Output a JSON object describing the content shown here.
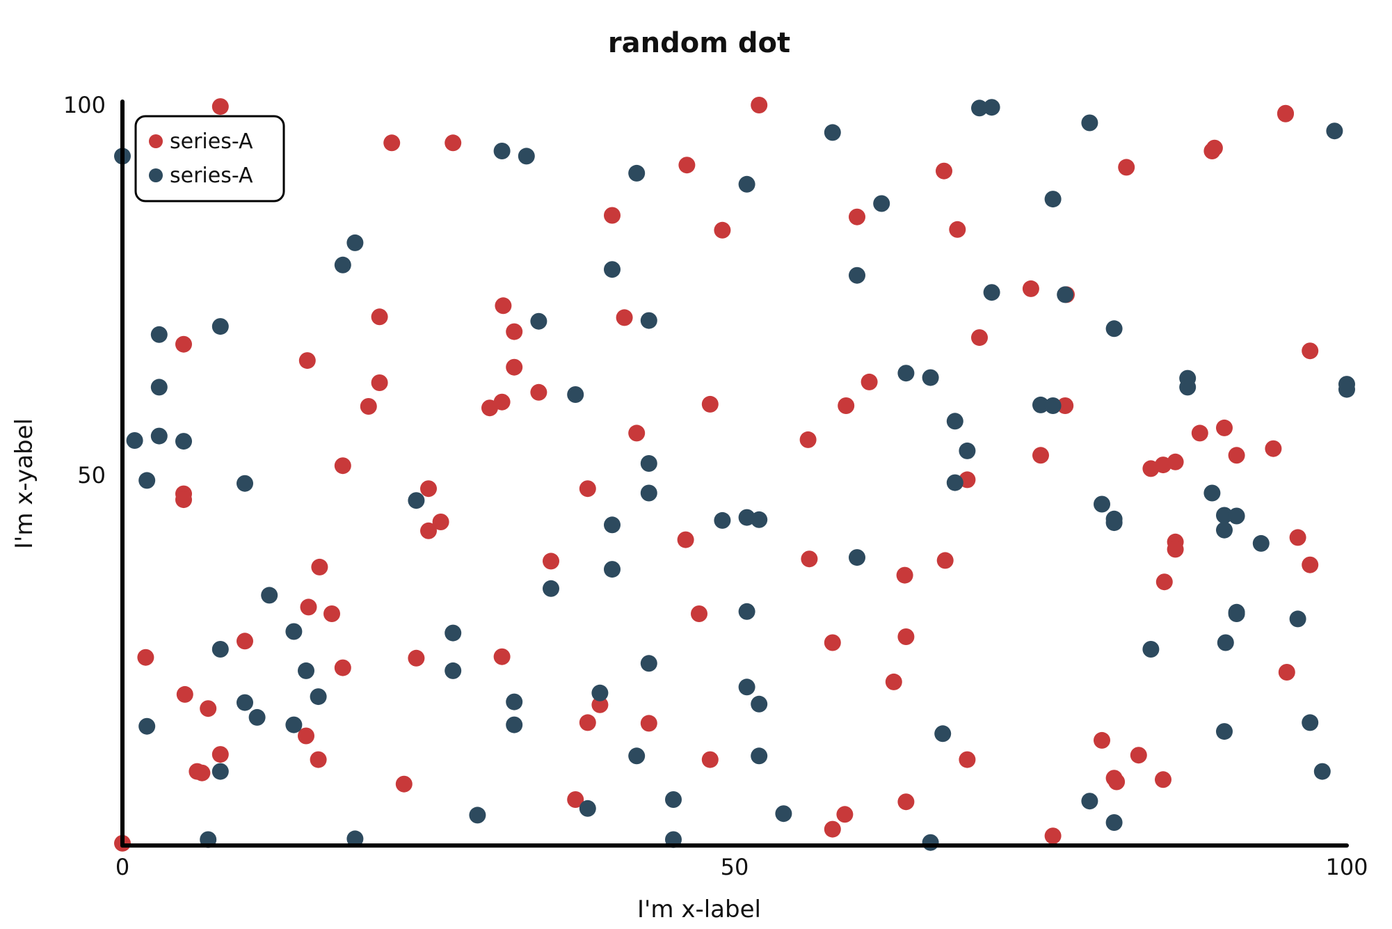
{
  "chart_data": {
    "type": "scatter",
    "title": "random dot",
    "xlabel": "I'm x-label",
    "ylabel": "I'm x-yabel",
    "xlim": [
      0,
      100
    ],
    "ylim": [
      0,
      100
    ],
    "xticks": [
      0,
      50,
      100
    ],
    "yticks": [
      50,
      100
    ],
    "legend_position": "top-left",
    "grid": false,
    "series": [
      {
        "name": "series-A",
        "color": "#c8393a",
        "points": [
          [
            0,
            0.3
          ],
          [
            1.9,
            25.4
          ],
          [
            5,
            47.5
          ],
          [
            5,
            46.7
          ],
          [
            5,
            67.7
          ],
          [
            5.1,
            20.4
          ],
          [
            6.1,
            10
          ],
          [
            6.5,
            9.8
          ],
          [
            7,
            18.5
          ],
          [
            8,
            12.3
          ],
          [
            8,
            99.8
          ],
          [
            10,
            27.6
          ],
          [
            15,
            14.8
          ],
          [
            15.1,
            65.5
          ],
          [
            15.2,
            32.2
          ],
          [
            16,
            11.6
          ],
          [
            16.1,
            37.6
          ],
          [
            17.1,
            31.3
          ],
          [
            18,
            24
          ],
          [
            18,
            51.3
          ],
          [
            20.1,
            59.3
          ],
          [
            21,
            71.4
          ],
          [
            21,
            62.5
          ],
          [
            22,
            94.9
          ],
          [
            23,
            8.3
          ],
          [
            24,
            25.3
          ],
          [
            25,
            48.2
          ],
          [
            25,
            42.5
          ],
          [
            26,
            43.7
          ],
          [
            27,
            94.9
          ],
          [
            30,
            59.1
          ],
          [
            31,
            25.5
          ],
          [
            31,
            59.9
          ],
          [
            31.1,
            72.9
          ],
          [
            32,
            69.4
          ],
          [
            32,
            64.6
          ],
          [
            34,
            61.2
          ],
          [
            35,
            38.4
          ],
          [
            37,
            6.2
          ],
          [
            38,
            48.2
          ],
          [
            38,
            16.6
          ],
          [
            39,
            19
          ],
          [
            40,
            85.1
          ],
          [
            41,
            71.3
          ],
          [
            42,
            55.7
          ],
          [
            43,
            16.5
          ],
          [
            46,
            41.3
          ],
          [
            46.1,
            91.9
          ],
          [
            47.1,
            31.3
          ],
          [
            48,
            11.6
          ],
          [
            48,
            59.6
          ],
          [
            49,
            83.1
          ],
          [
            52,
            100
          ],
          [
            56,
            54.8
          ],
          [
            56.1,
            38.7
          ],
          [
            58,
            27.4
          ],
          [
            58,
            2.2
          ],
          [
            59,
            4.2
          ],
          [
            59.1,
            59.4
          ],
          [
            60,
            84.9
          ],
          [
            61,
            62.6
          ],
          [
            63,
            22.1
          ],
          [
            63.9,
            36.5
          ],
          [
            64,
            28.2
          ],
          [
            64,
            5.9
          ],
          [
            67.2,
            38.5
          ],
          [
            67.1,
            91.1
          ],
          [
            68.2,
            83.2
          ],
          [
            69,
            49.4
          ],
          [
            69,
            11.6
          ],
          [
            70,
            68.6
          ],
          [
            74.2,
            75.2
          ],
          [
            75,
            52.7
          ],
          [
            76,
            1.3
          ],
          [
            77,
            59.4
          ],
          [
            77.1,
            74.4
          ],
          [
            80,
            14.2
          ],
          [
            81,
            9.1
          ],
          [
            81.2,
            8.6
          ],
          [
            82,
            91.6
          ],
          [
            83,
            12.2
          ],
          [
            84,
            50.9
          ],
          [
            85,
            8.9
          ],
          [
            85,
            51.4
          ],
          [
            85.1,
            35.6
          ],
          [
            86,
            41
          ],
          [
            86,
            40
          ],
          [
            86,
            51.8
          ],
          [
            88,
            55.7
          ],
          [
            89,
            93.8
          ],
          [
            89.2,
            94.2
          ],
          [
            90,
            56.4
          ],
          [
            91,
            52.7
          ],
          [
            94,
            53.6
          ],
          [
            95,
            98.9
          ],
          [
            95,
            98.8
          ],
          [
            96,
            41.6
          ],
          [
            97,
            37.9
          ],
          [
            97,
            66.8
          ],
          [
            95.1,
            23.4
          ]
        ]
      },
      {
        "name": "series-A",
        "color": "#2d4a5e",
        "points": [
          [
            0,
            93.1
          ],
          [
            1,
            54.7
          ],
          [
            2,
            49.3
          ],
          [
            2,
            16.1
          ],
          [
            3,
            69
          ],
          [
            3,
            61.9
          ],
          [
            3,
            55.3
          ],
          [
            5,
            54.6
          ],
          [
            7,
            0.8
          ],
          [
            8,
            70.1
          ],
          [
            8,
            26.5
          ],
          [
            8,
            10
          ],
          [
            10,
            48.9
          ],
          [
            10,
            19.3
          ],
          [
            11,
            17.3
          ],
          [
            12,
            33.8
          ],
          [
            14,
            16.3
          ],
          [
            14,
            28.9
          ],
          [
            15,
            23.6
          ],
          [
            16,
            20.1
          ],
          [
            18,
            78.4
          ],
          [
            19,
            81.4
          ],
          [
            19,
            0.9
          ],
          [
            24,
            46.6
          ],
          [
            27,
            28.7
          ],
          [
            27,
            23.6
          ],
          [
            29,
            4.1
          ],
          [
            31,
            93.8
          ],
          [
            32,
            19.4
          ],
          [
            32,
            16.3
          ],
          [
            33,
            93.1
          ],
          [
            34,
            70.8
          ],
          [
            35,
            34.7
          ],
          [
            37,
            60.9
          ],
          [
            38,
            5
          ],
          [
            39,
            20.6
          ],
          [
            40,
            77.8
          ],
          [
            40,
            43.3
          ],
          [
            40,
            37.3
          ],
          [
            42,
            90.8
          ],
          [
            42,
            12.1
          ],
          [
            43,
            70.9
          ],
          [
            43,
            51.6
          ],
          [
            43,
            47.6
          ],
          [
            43,
            24.6
          ],
          [
            45,
            6.2
          ],
          [
            45,
            0.8
          ],
          [
            49,
            43.9
          ],
          [
            51,
            89.3
          ],
          [
            51,
            44.3
          ],
          [
            51,
            31.6
          ],
          [
            51,
            21.4
          ],
          [
            52,
            44
          ],
          [
            52,
            19.1
          ],
          [
            52,
            12.1
          ],
          [
            54,
            4.3
          ],
          [
            58,
            96.3
          ],
          [
            60,
            77
          ],
          [
            60,
            38.9
          ],
          [
            62,
            86.7
          ],
          [
            64,
            63.8
          ],
          [
            66,
            63.2
          ],
          [
            66,
            0.4
          ],
          [
            67,
            15.1
          ],
          [
            68,
            57.3
          ],
          [
            68,
            49
          ],
          [
            69,
            53.3
          ],
          [
            70,
            99.6
          ],
          [
            71,
            99.7
          ],
          [
            71,
            74.7
          ],
          [
            75,
            59.5
          ],
          [
            76,
            59.4
          ],
          [
            76,
            87.3
          ],
          [
            77,
            74.4
          ],
          [
            79,
            97.6
          ],
          [
            79,
            6
          ],
          [
            80,
            46.1
          ],
          [
            81,
            69.8
          ],
          [
            81,
            43.6
          ],
          [
            81,
            44.1
          ],
          [
            81,
            3.1
          ],
          [
            84,
            26.5
          ],
          [
            87,
            63.1
          ],
          [
            87,
            61.9
          ],
          [
            89,
            47.6
          ],
          [
            90,
            44.6
          ],
          [
            90,
            42.6
          ],
          [
            90,
            15.4
          ],
          [
            90.1,
            27.4
          ],
          [
            91,
            44.5
          ],
          [
            91,
            31.3
          ],
          [
            91,
            31.5
          ],
          [
            93,
            40.8
          ],
          [
            96,
            30.6
          ],
          [
            97,
            16.6
          ],
          [
            98,
            10
          ],
          [
            99,
            96.5
          ],
          [
            100,
            62.3
          ],
          [
            100,
            61.6
          ]
        ]
      }
    ]
  }
}
